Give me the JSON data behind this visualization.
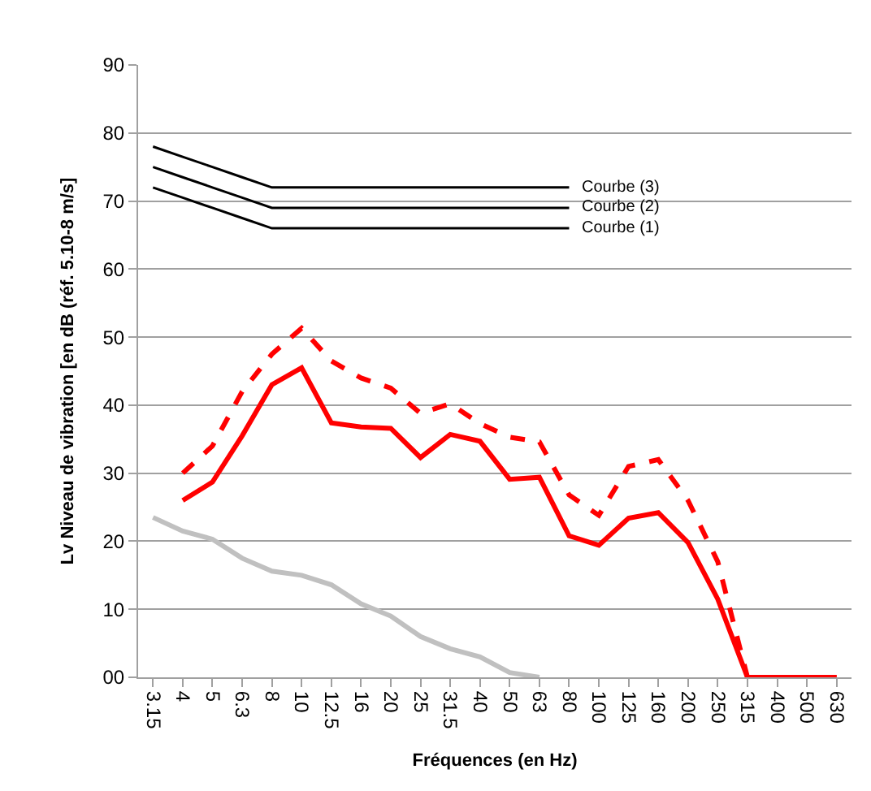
{
  "chart_data": {
    "type": "line",
    "xlabel": "Fréquences (en Hz)",
    "ylabel": "Lv Niveau de vibration [en dB (réf. 5.10-8 m/s]",
    "categories": [
      "3.15",
      "4",
      "5",
      "6.3",
      "8",
      "10",
      "12.5",
      "16",
      "20",
      "25",
      "31.5",
      "40",
      "50",
      "63",
      "80",
      "100",
      "125",
      "160",
      "200",
      "250",
      "315",
      "400",
      "500",
      "630"
    ],
    "series": [
      {
        "name": "Courbe (3)",
        "color": "#000000",
        "values": [
          78,
          76.5,
          75,
          73.5,
          72,
          72,
          72,
          72,
          72,
          72,
          72,
          72,
          72,
          72,
          72,
          null,
          null,
          null,
          null,
          null,
          null,
          null,
          null,
          null
        ]
      },
      {
        "name": "Courbe (2)",
        "color": "#000000",
        "values": [
          75,
          73.5,
          72,
          70.5,
          69,
          69,
          69,
          69,
          69,
          69,
          69,
          69,
          69,
          69,
          69,
          null,
          null,
          null,
          null,
          null,
          null,
          null,
          null,
          null
        ]
      },
      {
        "name": "Courbe (1)",
        "color": "#000000",
        "values": [
          72,
          70.5,
          69,
          67.5,
          66,
          66,
          66,
          66,
          66,
          66,
          66,
          66,
          66,
          66,
          66,
          null,
          null,
          null,
          null,
          null,
          null,
          null,
          null,
          null
        ]
      },
      {
        "color": "#ff0000",
        "line_style": "dashed",
        "values": [
          null,
          30,
          34,
          42,
          47.5,
          51.3,
          46.5,
          44,
          42.5,
          38.8,
          40.2,
          37.3,
          35.3,
          34.6,
          26.8,
          23.8,
          31,
          32,
          26,
          17,
          0,
          0,
          0,
          0
        ]
      },
      {
        "color": "#ff0000",
        "values": [
          null,
          26,
          28.7,
          35.5,
          43,
          45.5,
          37.4,
          36.8,
          36.6,
          32.3,
          35.7,
          34.7,
          29.1,
          29.4,
          20.8,
          19.4,
          23.4,
          24.2,
          19.8,
          11.5,
          0,
          0,
          0,
          0
        ]
      },
      {
        "color": "#c0c0c0",
        "values": [
          23.5,
          21.5,
          20.3,
          17.5,
          15.6,
          15,
          13.6,
          10.8,
          9,
          6,
          4.2,
          3,
          0.7,
          0,
          null,
          null,
          null,
          null,
          null,
          null,
          null,
          null,
          null,
          null
        ]
      }
    ],
    "ylim": [
      0,
      90
    ],
    "yticks": [
      {
        "value": 0,
        "label": "00"
      },
      10,
      20,
      30,
      40,
      50,
      60,
      70,
      80,
      90
    ],
    "grid": "y",
    "legend": false,
    "marker": "none"
  }
}
